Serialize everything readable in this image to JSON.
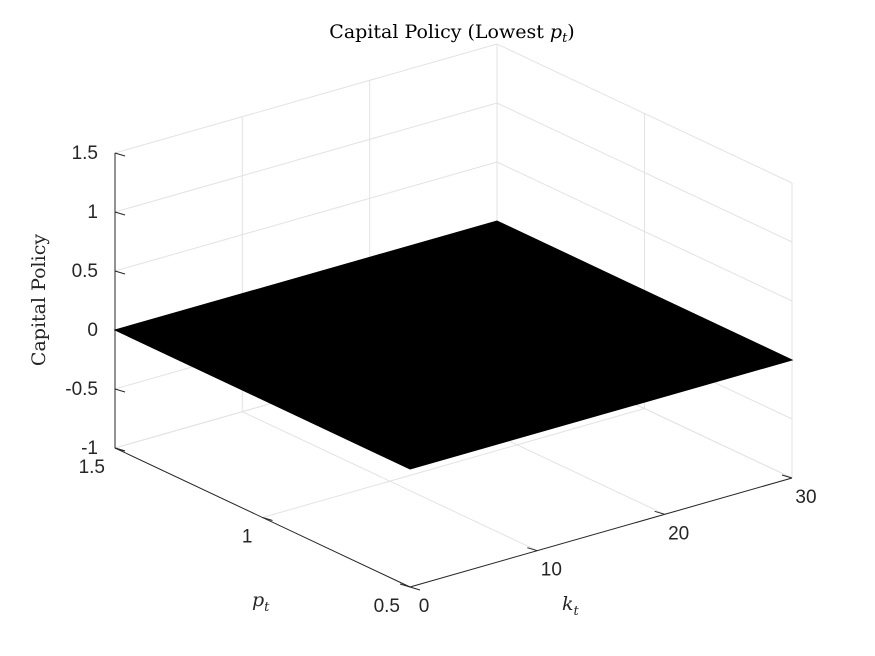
{
  "chart_data": {
    "type": "surface",
    "title": "Capital Policy (Lowest p_t)",
    "title_main": "Capital Policy (Lowest ",
    "title_var": "p",
    "title_sub": "t",
    "title_close": ")",
    "xlabel": "k_t",
    "xlabel_var": "k",
    "xlabel_sub": "t",
    "ylabel": "p_t",
    "ylabel_var": "p",
    "ylabel_sub": "t",
    "zlabel": "Capital Policy",
    "xlim": [
      0,
      30
    ],
    "ylim": [
      0.5,
      1.5
    ],
    "zlim": [
      -1,
      1.5
    ],
    "x_ticks": [
      0,
      10,
      20,
      30
    ],
    "x_tick_labels": [
      "0",
      "10",
      "20",
      "30"
    ],
    "y_ticks": [
      0.5,
      1,
      1.5
    ],
    "y_tick_labels": [
      "0.5",
      "1",
      "1.5"
    ],
    "z_ticks": [
      -1,
      -0.5,
      0,
      0.5,
      1,
      1.5
    ],
    "z_tick_labels": [
      "-1",
      "-0.5",
      "0",
      "0.5",
      "1",
      "1.5"
    ],
    "grid": true,
    "surface": {
      "x_range": [
        0,
        30
      ],
      "y_range": [
        0.5,
        1.5
      ],
      "z_value": 0,
      "color": "#000000"
    }
  }
}
